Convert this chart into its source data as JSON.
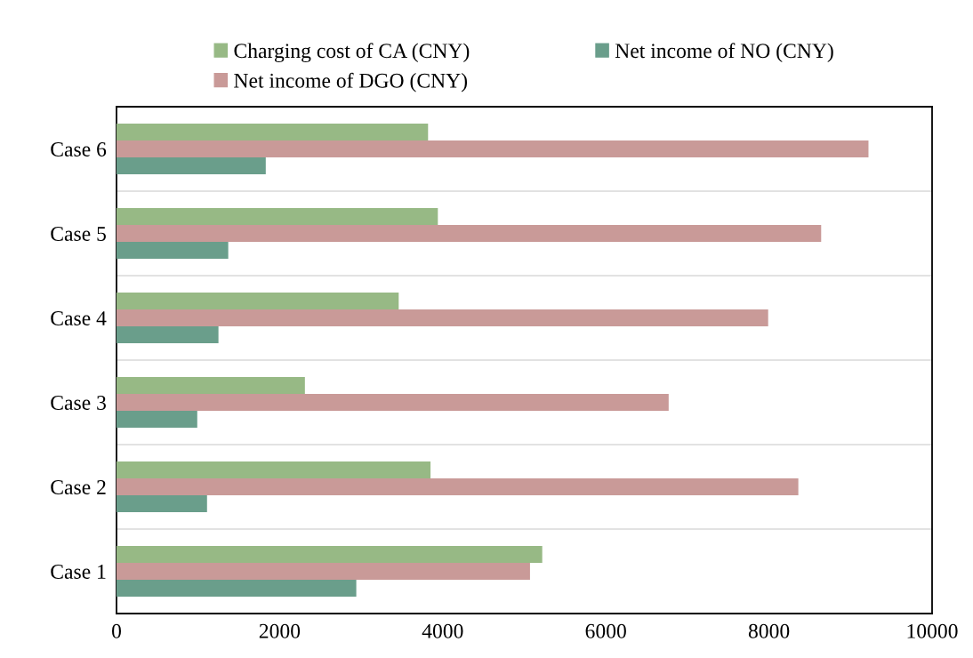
{
  "chart_data": {
    "type": "bar",
    "orientation": "horizontal",
    "categories": [
      "Case 6",
      "Case 5",
      "Case 4",
      "Case 3",
      "Case 2",
      "Case 1"
    ],
    "series": [
      {
        "name": "Charging cost of CA (CNY)",
        "color": "#97b985",
        "values": [
          3820,
          3940,
          3460,
          2310,
          3850,
          5220
        ]
      },
      {
        "name": "Net income of DGO (CNY)",
        "color": "#c99a98",
        "values": [
          9220,
          8640,
          7990,
          6770,
          8360,
          5070
        ]
      },
      {
        "name": "Net income of NO (CNY)",
        "color": "#6a9e8b",
        "values": [
          1830,
          1370,
          1250,
          990,
          1110,
          2940
        ]
      }
    ],
    "xlim": [
      0,
      10000
    ],
    "xticks": [
      0,
      2000,
      4000,
      6000,
      8000,
      10000
    ],
    "grid": "y",
    "legend": "top"
  }
}
